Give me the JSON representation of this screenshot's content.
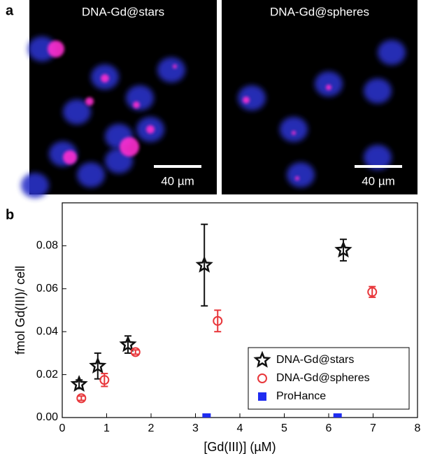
{
  "figure": {
    "panel_a_label": "a",
    "panel_b_label": "b",
    "images": [
      {
        "title": "DNA-Gd@stars",
        "scale_bar": "40 µm"
      },
      {
        "title": "DNA-Gd@spheres",
        "scale_bar": "40 µm"
      }
    ]
  },
  "chart_data": {
    "type": "scatter",
    "xlabel": "[Gd(III)] (µM)",
    "ylabel": "fmol Gd(III)/ cell",
    "xlim": [
      0,
      8
    ],
    "xticks": [
      0,
      1,
      2,
      3,
      4,
      5,
      6,
      7,
      8
    ],
    "ylim": [
      0,
      0.1
    ],
    "yticks": [
      {
        "value": 0,
        "label": "0.00"
      },
      0.02,
      0.04,
      0.06,
      0.08
    ],
    "legend": "lower right",
    "series": [
      {
        "name": "DNA-Gd@stars",
        "color": "#111111",
        "marker": "star",
        "x": [
          0.38,
          0.8,
          1.48,
          3.2,
          6.33
        ],
        "values": [
          0.0155,
          0.024,
          0.034,
          0.071,
          0.078
        ],
        "errors": [
          0.002,
          0.006,
          0.004,
          0.019,
          0.005
        ]
      },
      {
        "name": "DNA-Gd@spheres",
        "color": "#e8363a",
        "marker": "circle",
        "x": [
          0.43,
          0.95,
          1.65,
          3.5,
          6.98
        ],
        "values": [
          0.009,
          0.0175,
          0.0305,
          0.045,
          0.0585
        ],
        "errors": [
          0.001,
          0.003,
          0.001,
          0.005,
          0.0025
        ]
      },
      {
        "name": "ProHance",
        "color": "#1f2cf0",
        "marker": "square",
        "x": [
          3.25,
          6.2
        ],
        "values": [
          0,
          0
        ]
      }
    ]
  }
}
